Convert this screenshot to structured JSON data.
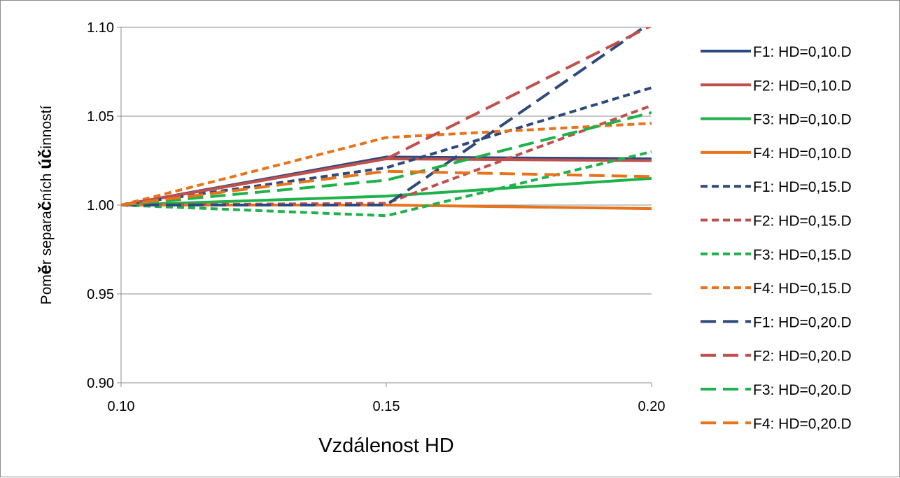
{
  "chart_data": {
    "type": "line",
    "title": "",
    "xlabel": "Vzdálenost HD",
    "ylabel": {
      "parts": [
        {
          "text": "Pom",
          "bold": false
        },
        {
          "text": "ě",
          "bold": true
        },
        {
          "text": "r separa",
          "bold": false
        },
        {
          "text": "č",
          "bold": true
        },
        {
          "text": "ních ",
          "bold": false
        },
        {
          "text": "úč",
          "bold": true
        },
        {
          "text": "inností",
          "bold": false
        }
      ]
    },
    "x": [
      0.1,
      0.15,
      0.2
    ],
    "x_tick_labels": [
      "0.10",
      "0.15",
      "0.20"
    ],
    "y_tick_values": [
      0.9,
      0.95,
      1.0,
      1.05,
      1.1
    ],
    "y_tick_labels": [
      "0.90",
      "0.95",
      "1.00",
      "1.05",
      "1.10"
    ],
    "ylim": [
      0.9,
      1.1
    ],
    "xlim": [
      0.1,
      0.2
    ],
    "grid": "horizontal",
    "legend_position": "right",
    "series": [
      {
        "name": "F1: HD=0,10.D",
        "color": "#2e4a7d",
        "style": "solid",
        "values": [
          1.0,
          1.027,
          1.026
        ]
      },
      {
        "name": "F2: HD=0,10.D",
        "color": "#c0504d",
        "style": "solid",
        "values": [
          1.0,
          1.026,
          1.025
        ]
      },
      {
        "name": "F3: HD=0,10.D",
        "color": "#1fb14a",
        "style": "solid",
        "values": [
          1.0,
          1.005,
          1.015
        ]
      },
      {
        "name": "F4: HD=0,10.D",
        "color": "#e8731a",
        "style": "solid",
        "values": [
          1.0,
          1.0,
          0.998
        ]
      },
      {
        "name": "F1: HD=0,15.D",
        "color": "#2e4a7d",
        "style": "dashed",
        "values": [
          1.0,
          1.021,
          1.066
        ]
      },
      {
        "name": "F2: HD=0,15.D",
        "color": "#c0504d",
        "style": "dashed",
        "values": [
          1.0,
          1.001,
          1.056
        ]
      },
      {
        "name": "F3: HD=0,15.D",
        "color": "#1fb14a",
        "style": "dashed",
        "values": [
          1.0,
          0.994,
          1.03
        ]
      },
      {
        "name": "F4: HD=0,15.D",
        "color": "#e8731a",
        "style": "dashed",
        "values": [
          1.0,
          1.038,
          1.046
        ]
      },
      {
        "name": "F1: HD=0,20.D",
        "color": "#2e4a7d",
        "style": "longdash",
        "values": [
          1.0,
          1.0,
          1.103
        ]
      },
      {
        "name": "F2: HD=0,20.D",
        "color": "#c0504d",
        "style": "longdash",
        "values": [
          1.0,
          1.026,
          1.101
        ]
      },
      {
        "name": "F3: HD=0,20.D",
        "color": "#1fb14a",
        "style": "longdash",
        "values": [
          1.0,
          1.014,
          1.052
        ]
      },
      {
        "name": "F4: HD=0,20.D",
        "color": "#e8731a",
        "style": "longdash",
        "values": [
          1.0,
          1.019,
          1.016
        ]
      }
    ]
  }
}
